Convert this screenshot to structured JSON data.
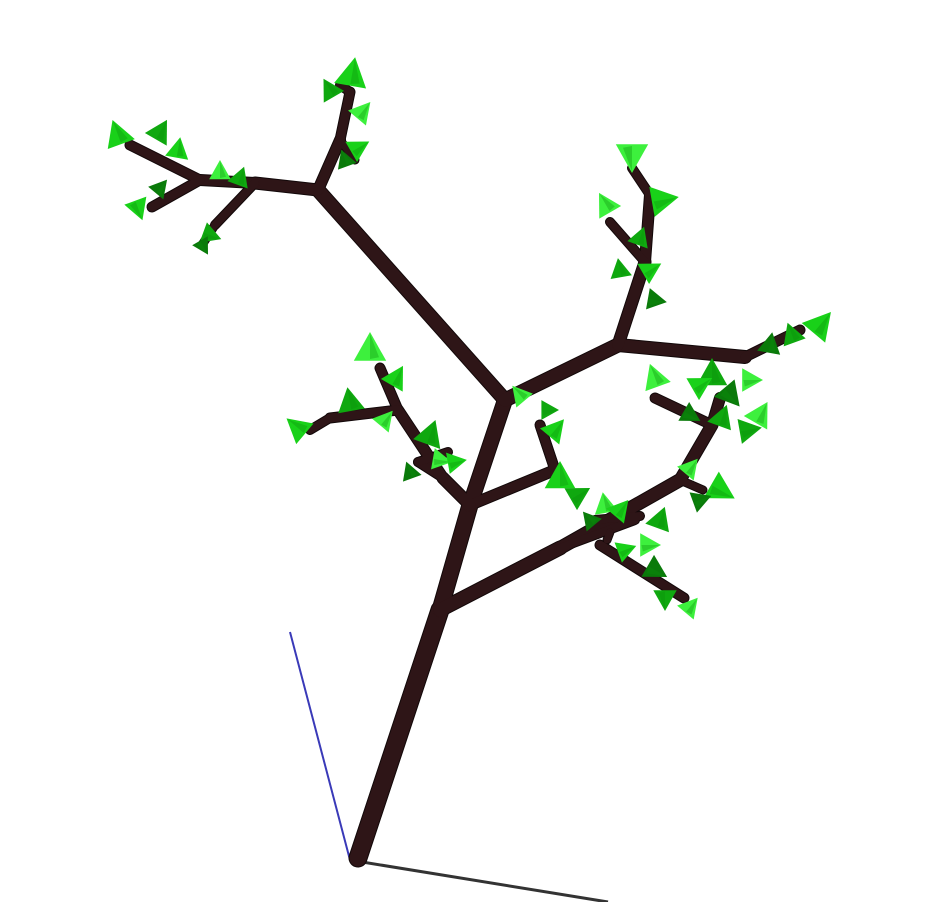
{
  "scene": {
    "background": "#ffffff",
    "branch_color": "#2e1517",
    "leaf_colors": [
      "#19d119",
      "#0fa80f",
      "#3df03d",
      "#0a7a0a",
      "#25e025"
    ],
    "axis_colors": {
      "z": "#3a3ab8",
      "x": "#333333"
    }
  }
}
